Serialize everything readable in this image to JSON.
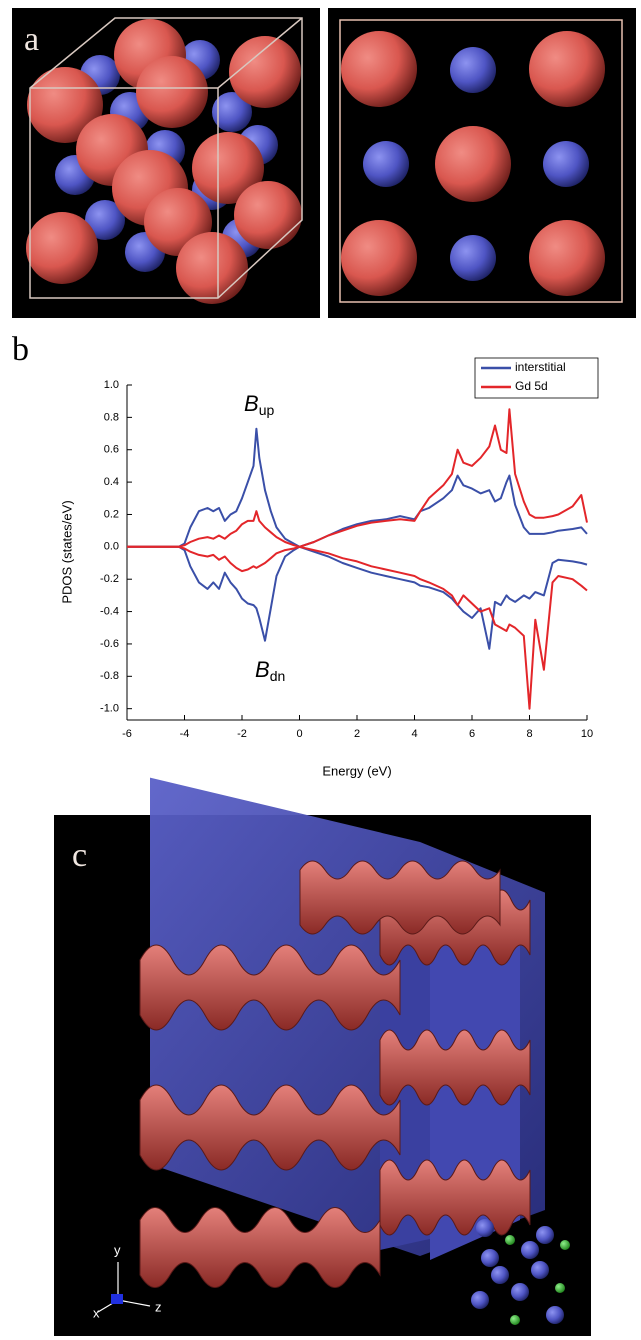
{
  "panel_labels": [
    "a",
    "b",
    "c"
  ],
  "axis_triad": [
    "x",
    "y",
    "z"
  ],
  "chart_data": {
    "type": "line",
    "xlabel": "Energy (eV)",
    "ylabel": "PDOS (states/eV)",
    "annotations": [
      {
        "text": "B",
        "sub": "up"
      },
      {
        "text": "B",
        "sub": "dn"
      }
    ],
    "xlim": [
      -6,
      10
    ],
    "xticks": [
      -6,
      -4,
      -2,
      0,
      2,
      4,
      6,
      8,
      10
    ],
    "ylim": [
      -1.07,
      1.0
    ],
    "yticks": [
      {
        "value": 1,
        "label": "1.0"
      },
      0.8,
      0.6,
      0.4,
      0.2,
      {
        "value": 0,
        "label": "0.0"
      },
      -0.2,
      -0.4,
      -0.6,
      -0.8,
      {
        "value": -1,
        "label": "-1.0"
      }
    ],
    "legend": "top-right",
    "x": [
      -6,
      -4.2,
      -4,
      -3.8,
      -3.5,
      -3.2,
      -3.0,
      -2.8,
      -2.6,
      -2.4,
      -2.2,
      -2.0,
      -1.8,
      -1.6,
      -1.5,
      -1.4,
      -1.2,
      -1.0,
      -0.8,
      -0.5,
      -0.2,
      0,
      0.5,
      1,
      1.5,
      2,
      2.5,
      3,
      3.5,
      4,
      4.2,
      4.5,
      5,
      5.3,
      5.5,
      5.7,
      6.0,
      6.3,
      6.6,
      6.8,
      7.0,
      7.2,
      7.3,
      7.5,
      7.8,
      8.0,
      8.2,
      8.5,
      8.8,
      9.0,
      9.5,
      9.8,
      10
    ],
    "series": [
      {
        "name": "interstitial",
        "color": "#3a4fa8",
        "values": [
          0,
          0,
          0.02,
          0.12,
          0.22,
          0.24,
          0.22,
          0.24,
          0.16,
          0.2,
          0.22,
          0.3,
          0.4,
          0.5,
          0.73,
          0.55,
          0.35,
          0.22,
          0.12,
          0.05,
          0.02,
          0,
          0.03,
          0.07,
          0.11,
          0.14,
          0.16,
          0.17,
          0.19,
          0.17,
          0.22,
          0.24,
          0.3,
          0.35,
          0.44,
          0.38,
          0.36,
          0.33,
          0.35,
          0.28,
          0.3,
          0.4,
          0.44,
          0.26,
          0.12,
          0.08,
          0.08,
          0.08,
          0.09,
          0.1,
          0.11,
          0.12,
          0.08
        ],
        "values_dn": [
          0,
          0,
          -0.02,
          -0.12,
          -0.22,
          -0.26,
          -0.22,
          -0.26,
          -0.16,
          -0.22,
          -0.26,
          -0.32,
          -0.35,
          -0.36,
          -0.38,
          -0.44,
          -0.58,
          -0.38,
          -0.18,
          -0.06,
          -0.02,
          0,
          -0.03,
          -0.06,
          -0.1,
          -0.13,
          -0.16,
          -0.18,
          -0.2,
          -0.22,
          -0.24,
          -0.25,
          -0.28,
          -0.32,
          -0.36,
          -0.4,
          -0.44,
          -0.38,
          -0.63,
          -0.34,
          -0.36,
          -0.3,
          -0.32,
          -0.34,
          -0.3,
          -0.32,
          -0.28,
          -0.3,
          -0.1,
          -0.08,
          -0.09,
          -0.1,
          -0.11
        ]
      },
      {
        "name": "Gd 5d",
        "color": "#e3262a",
        "values": [
          0,
          0,
          0.01,
          0.03,
          0.05,
          0.06,
          0.05,
          0.07,
          0.05,
          0.08,
          0.1,
          0.14,
          0.16,
          0.16,
          0.22,
          0.16,
          0.12,
          0.09,
          0.06,
          0.03,
          0.01,
          0,
          0.03,
          0.07,
          0.1,
          0.13,
          0.15,
          0.16,
          0.17,
          0.16,
          0.22,
          0.3,
          0.38,
          0.45,
          0.6,
          0.52,
          0.5,
          0.55,
          0.62,
          0.75,
          0.6,
          0.58,
          0.85,
          0.45,
          0.28,
          0.2,
          0.18,
          0.18,
          0.19,
          0.2,
          0.25,
          0.32,
          0.15
        ],
        "values_dn": [
          0,
          0,
          -0.01,
          -0.03,
          -0.05,
          -0.06,
          -0.05,
          -0.08,
          -0.06,
          -0.1,
          -0.13,
          -0.15,
          -0.14,
          -0.12,
          -0.13,
          -0.12,
          -0.1,
          -0.07,
          -0.04,
          -0.02,
          -0.01,
          0,
          -0.02,
          -0.04,
          -0.07,
          -0.09,
          -0.12,
          -0.14,
          -0.16,
          -0.18,
          -0.2,
          -0.22,
          -0.26,
          -0.3,
          -0.36,
          -0.3,
          -0.35,
          -0.4,
          -0.38,
          -0.48,
          -0.5,
          -0.52,
          -0.48,
          -0.5,
          -0.55,
          -1.0,
          -0.45,
          -0.76,
          -0.22,
          -0.18,
          -0.2,
          -0.24,
          -0.27
        ]
      }
    ]
  }
}
